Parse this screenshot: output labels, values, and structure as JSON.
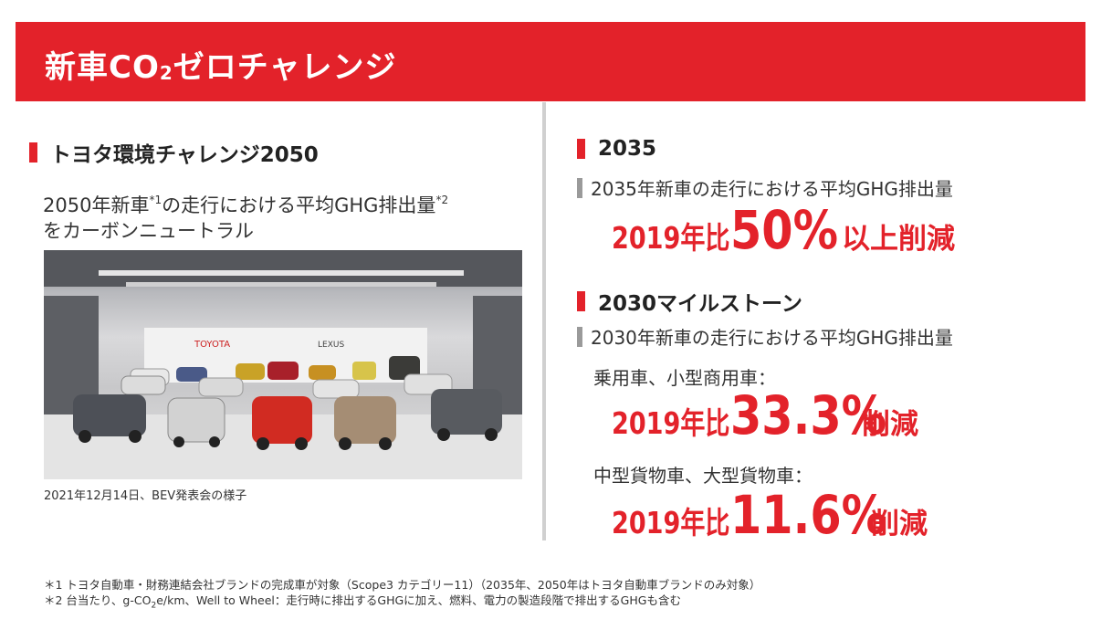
{
  "header": {
    "title_prefix": "新車CO",
    "title_sub": "2",
    "title_suffix": "ゼロチャレンジ"
  },
  "left": {
    "heading": "トヨタ環境チャレンジ2050",
    "line1_a": "2050年新車",
    "line1_sup1": "*1",
    "line1_b": "の走行における平均GHG排出量",
    "line1_sup2": "*2",
    "line2": "をカーボンニュートラル",
    "photo_caption": "2021年12月14日、BEV発表会の様子",
    "photo_logo_left": "TOYOTA",
    "photo_logo_right": "LEXUS"
  },
  "right": {
    "section_2035": {
      "heading": "2035",
      "subheading": "2035年新車の走行における平均GHG排出量",
      "year_text": "2019年比",
      "percent": "50%",
      "suffix": "以上削減"
    },
    "section_2030": {
      "heading": "2030マイルストーン",
      "subheading": "2030年新車の走行における平均GHG排出量",
      "cat1_label": "乗用車、小型商用車：",
      "cat1_year": "2019年比",
      "cat1_percent": "33.3%",
      "cat1_suffix": "削減",
      "cat2_label": "中型貨物車、大型貨物車：",
      "cat2_year": "2019年比",
      "cat2_percent": "11.6%",
      "cat2_suffix": "削減"
    }
  },
  "footnotes": {
    "note1": "＊1 トヨタ自動車・財務連結会社ブランドの完成車が対象（Scope3 カテゴリー11）（2035年、2050年はトヨタ自動車ブランドのみ対象）",
    "note2_a": "＊2 台当たり、g-CO",
    "note2_sub": "2",
    "note2_b": "e/km、Well to Wheel：走行時に排出するGHGに加え、燃料、電力の製造段階で排出するGHGも含む"
  },
  "colors": {
    "brand_red": "#e3222a",
    "sub_mark_gray": "#9a9a9a",
    "divider_gray": "#d0d0d0"
  }
}
